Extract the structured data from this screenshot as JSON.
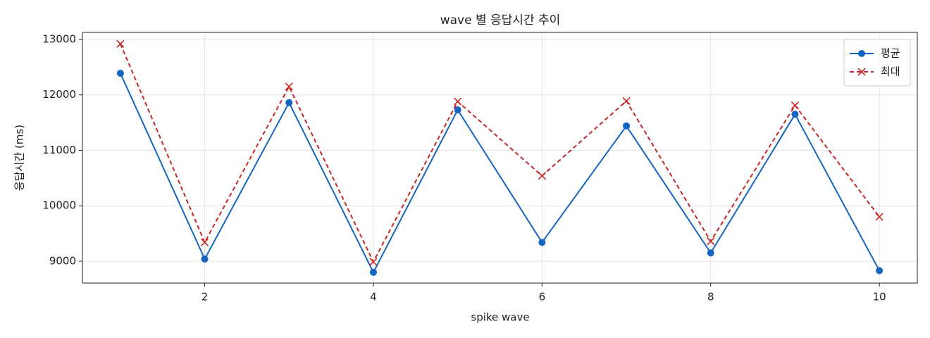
{
  "chart_data": {
    "type": "line",
    "title": "wave 별 응답시간 추이",
    "x_label": "spike wave",
    "y_label": "응답시간 (ms)",
    "x": [
      1,
      2,
      3,
      4,
      5,
      6,
      7,
      8,
      9,
      10
    ],
    "series": [
      {
        "name": "평균",
        "color": "#1565c0",
        "marker": "o",
        "linestyle": "solid",
        "values": [
          12390,
          9040,
          11860,
          8800,
          11730,
          9340,
          11440,
          9150,
          11650,
          8830
        ]
      },
      {
        "name": "최대",
        "color": "#c62828",
        "marker": "x",
        "linestyle": "dashed",
        "values": [
          12920,
          9340,
          12150,
          8990,
          11880,
          10540,
          11890,
          9360,
          11810,
          9800
        ]
      }
    ],
    "xlim": [
      0.55,
      10.45
    ],
    "xticks": [
      2,
      4,
      6,
      8,
      10
    ],
    "ylim": [
      8606,
      13127
    ],
    "yticks": [
      9000,
      10000,
      11000,
      12000,
      13000
    ],
    "grid": true,
    "legend": "upper right"
  }
}
